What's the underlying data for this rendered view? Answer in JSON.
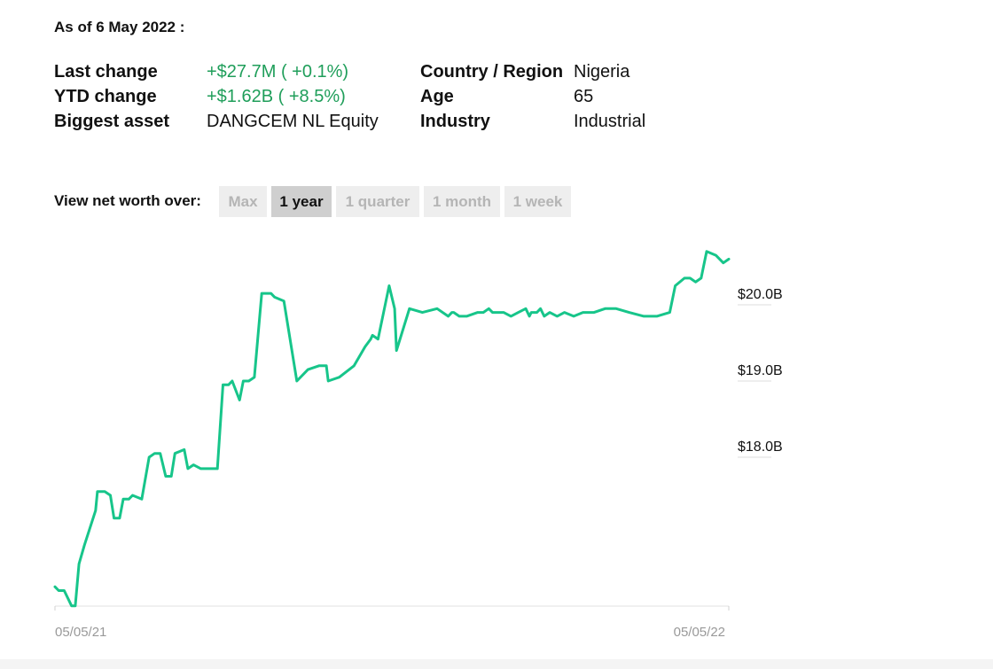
{
  "as_of": "As of 6 May 2022 :",
  "stats": {
    "left": [
      {
        "label": "Last change",
        "value": "+$27.7M ( +0.1%)"
      },
      {
        "label": "YTD change",
        "value": "+$1.62B ( +8.5%)"
      },
      {
        "label": "Biggest asset",
        "value": "DANGCEM NL Equity"
      }
    ],
    "right": [
      {
        "label": "Country / Region",
        "value": "Nigeria"
      },
      {
        "label": "Age",
        "value": "65"
      },
      {
        "label": "Industry",
        "value": "Industrial"
      }
    ]
  },
  "view_label": "View net worth over:",
  "ranges": [
    "Max",
    "1 year",
    "1 quarter",
    "1 month",
    "1 week"
  ],
  "active_range": "1 year",
  "colors": {
    "line": "#17c58a",
    "positive": "#1f9e5a",
    "active_bg": "#cfcfcf",
    "inactive_bg": "#eeeeee",
    "inactive_text": "#b5b5b5"
  },
  "chart_data": {
    "type": "line",
    "x_tick_labels": [
      "05/05/21",
      "05/05/22"
    ],
    "y_tick_labels": [
      "$18.0B",
      "$19.0B",
      "$20.0B"
    ],
    "y_ticks": [
      18.0,
      19.0,
      20.0
    ],
    "ylim": [
      16.0,
      20.6
    ],
    "series": [
      {
        "x": [
          "2021-05-05",
          "2021-05-07",
          "2021-05-10",
          "2021-05-14",
          "2021-05-16",
          "2021-05-18",
          "2021-05-21",
          "2021-05-27",
          "2021-05-28",
          "2021-06-01",
          "2021-06-04",
          "2021-06-06",
          "2021-06-09",
          "2021-06-11",
          "2021-06-14",
          "2021-06-16",
          "2021-06-21",
          "2021-06-25",
          "2021-06-28",
          "2021-07-01",
          "2021-07-04",
          "2021-07-07",
          "2021-07-09",
          "2021-07-14",
          "2021-07-16",
          "2021-07-19",
          "2021-07-23",
          "2021-07-27",
          "2021-08-01",
          "2021-08-04",
          "2021-08-05",
          "2021-08-07",
          "2021-08-09",
          "2021-08-13",
          "2021-08-15",
          "2021-08-18",
          "2021-08-21",
          "2021-08-25",
          "2021-08-30",
          "2021-09-01",
          "2021-09-06",
          "2021-09-13",
          "2021-09-19",
          "2021-09-25",
          "2021-09-29",
          "2021-09-30",
          "2021-10-06",
          "2021-10-14",
          "2021-10-20",
          "2021-10-23",
          "2021-10-24",
          "2021-10-27",
          "2021-11-02",
          "2021-11-05",
          "2021-11-06",
          "2021-11-13",
          "2021-11-20",
          "2021-11-28",
          "2021-12-04",
          "2021-12-06",
          "2021-12-07",
          "2021-12-10",
          "2021-12-14",
          "2021-12-20",
          "2021-12-23",
          "2021-12-26",
          "2021-12-28",
          "2022-01-03",
          "2022-01-07",
          "2022-01-11",
          "2022-01-15",
          "2022-01-17",
          "2022-01-18",
          "2022-01-21",
          "2022-01-23",
          "2022-01-25",
          "2022-01-28",
          "2022-02-01",
          "2022-02-05",
          "2022-02-10",
          "2022-02-15",
          "2022-02-21",
          "2022-02-27",
          "2022-03-05",
          "2022-03-12",
          "2022-03-20",
          "2022-03-27",
          "2022-04-03",
          "2022-04-06",
          "2022-04-11",
          "2022-04-14",
          "2022-04-17",
          "2022-04-20",
          "2022-04-23",
          "2022-04-28",
          "2022-05-02",
          "2022-05-05"
        ],
        "y": [
          16.3,
          16.25,
          16.25,
          16.05,
          16.05,
          16.6,
          16.85,
          17.3,
          17.55,
          17.55,
          17.5,
          17.2,
          17.2,
          17.45,
          17.45,
          17.5,
          17.45,
          18.0,
          18.05,
          18.05,
          17.75,
          17.75,
          18.05,
          18.1,
          17.85,
          17.9,
          17.85,
          17.85,
          17.85,
          18.95,
          18.95,
          18.95,
          19.0,
          18.75,
          19.0,
          19.0,
          19.05,
          20.15,
          20.15,
          20.1,
          20.05,
          19.0,
          19.15,
          19.2,
          19.2,
          19.0,
          19.05,
          19.2,
          19.45,
          19.55,
          19.6,
          19.55,
          20.25,
          19.95,
          19.4,
          19.95,
          19.9,
          19.95,
          19.85,
          19.9,
          19.9,
          19.85,
          19.85,
          19.9,
          19.9,
          19.95,
          19.9,
          19.9,
          19.85,
          19.9,
          19.95,
          19.85,
          19.9,
          19.9,
          19.95,
          19.85,
          19.9,
          19.85,
          19.9,
          19.85,
          19.9,
          19.9,
          19.95,
          19.95,
          19.9,
          19.85,
          19.85,
          19.9,
          20.25,
          20.35,
          20.35,
          20.3,
          20.35,
          20.7,
          20.65,
          20.55,
          20.6
        ]
      }
    ]
  }
}
